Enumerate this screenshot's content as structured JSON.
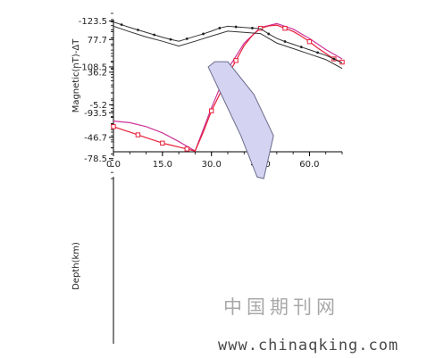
{
  "chart_data": [
    {
      "type": "line",
      "ylabel": "Magnetic(nT)-ΔT",
      "xlim": [
        0,
        70
      ],
      "ylim": [
        -65,
        103
      ],
      "x_ticks": [
        "0.0",
        "15.0",
        "30.0",
        "45.0",
        "60.0"
      ],
      "x_tick_values": [
        0,
        15,
        30,
        45,
        60
      ],
      "y_ticks": [
        "77.7",
        "36.2",
        "-5.2",
        "-46.7"
      ],
      "y_tick_values": [
        77.7,
        36.2,
        -5.2,
        -46.7
      ],
      "colors": {
        "observed": "#e8203a",
        "calculated": "#cc3399"
      },
      "series": [
        {
          "marker": "square",
          "x": [
            0,
            2.5,
            5,
            7.5,
            10,
            12.5,
            15,
            17.5,
            20,
            22.5,
            25,
            27.5,
            30,
            32.5,
            35,
            37.5,
            40,
            42.5,
            45,
            47.5,
            50,
            52.5,
            55,
            57.5,
            60,
            62.5,
            65,
            67.5,
            70
          ],
          "y": [
            -33,
            -36.5,
            -40,
            -43.5,
            -47,
            -50.5,
            -54,
            -56.5,
            -59,
            -61.5,
            -64,
            -40,
            -13,
            8,
            32,
            51,
            70,
            83,
            92,
            95,
            96,
            92,
            88,
            82,
            75,
            67,
            60,
            53,
            49
          ]
        },
        {
          "x": [
            0,
            5,
            10,
            15,
            20,
            25,
            30,
            35,
            40,
            45,
            50,
            55,
            60,
            65,
            70
          ],
          "y": [
            -26,
            -28,
            -33,
            -41,
            -52,
            -64,
            -9,
            40,
            73,
            93,
            98,
            91,
            79,
            65,
            53
          ]
        }
      ]
    },
    {
      "type": "line",
      "ylabel": "Depth(km)",
      "ylim": [
        -72,
        -126
      ],
      "y_ticks": [
        "-123.5",
        "-108.5",
        "-93.5",
        "-78.5"
      ],
      "y_tick_values": [
        -123.5,
        -108.5,
        -93.5,
        -78.5
      ],
      "colors": {
        "profile": "#333333",
        "body_fill": "#d4d4f2",
        "body_stroke": "#6b6b8a"
      },
      "series": [
        {
          "marker": "dot",
          "x": [
            0,
            2.5,
            5,
            7.5,
            10,
            12.5,
            15,
            17.5,
            20,
            22.5,
            25,
            27.5,
            30,
            32.5,
            35,
            37.5,
            40,
            42.5,
            45,
            47.5,
            50,
            52.5,
            55,
            57.5,
            60,
            62.5,
            65,
            67.5,
            70
          ],
          "y": [
            -123.2,
            -122.3,
            -121.4,
            -120.6,
            -119.8,
            -119.0,
            -118.2,
            -117.5,
            -116.9,
            -117.7,
            -118.5,
            -119.3,
            -120.2,
            -121.2,
            -121.8,
            -121.6,
            -121.4,
            -121.2,
            -121.0,
            -119.3,
            -117.8,
            -116.8,
            -115.9,
            -115.0,
            -114.1,
            -113.2,
            -112.3,
            -111.1,
            -109.8
          ]
        },
        {
          "x": [
            0,
            5,
            10,
            15,
            20,
            25,
            30,
            35,
            40,
            45,
            50,
            55,
            60,
            65,
            70
          ],
          "y": [
            -121.8,
            -120.0,
            -118.3,
            -116.9,
            -115.3,
            -116.9,
            -118.6,
            -120.2,
            -119.8,
            -119.4,
            -116.3,
            -114.5,
            -112.7,
            -110.9,
            -108.0
          ]
        }
      ],
      "body": {
        "x": [
          29,
          31,
          35,
          43,
          49,
          46,
          44,
          39,
          29
        ],
        "y": [
          -108.5,
          -110.2,
          -110.2,
          -99.5,
          -86.0,
          -72.0,
          -72.5,
          -86.0,
          -108.5
        ]
      }
    }
  ],
  "watermark": {
    "cn": "中国期刊网",
    "url": "www.chinaqking.com"
  }
}
